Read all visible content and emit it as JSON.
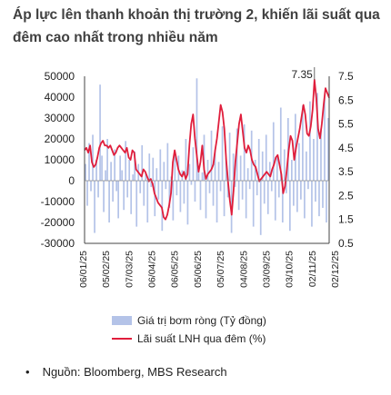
{
  "title": "Áp lực lên thanh khoản thị trường 2, khiến lãi suất qua đêm cao nhất trong nhiều năm",
  "source": {
    "bullet": "•",
    "text": "Nguồn: Bloomberg, MBS Research"
  },
  "chart_data": {
    "type": "bar+line",
    "title": "Áp lực lên thanh khoản thị trường 2, khiến lãi suất qua đêm cao nhất trong nhiều năm",
    "y_left_ticks": [
      "50000",
      "40000",
      "30000",
      "20000",
      "10000",
      "0",
      "-10000",
      "-20000",
      "-30000"
    ],
    "y_left_range": [
      -30000,
      50000
    ],
    "y_right_ticks": [
      "7.5",
      "6.5",
      "5.5",
      "4.5",
      "3.5",
      "2.5",
      "1.5",
      "0.5"
    ],
    "y_right_range": [
      0.5,
      7.5
    ],
    "x_ticks": [
      "06/01/25",
      "05/02/25",
      "07/03/25",
      "06/04/25",
      "06/05/25",
      "05/06/25",
      "05/07/25",
      "04/08/25",
      "03/09/25",
      "03/10/25",
      "02/11/25",
      "02/12/25"
    ],
    "annotation": "7.35",
    "series": [
      {
        "name": "Giá trị bơm ròng (Tỷ đồng)",
        "type": "bar",
        "color": "#b4c3e8",
        "values": [
          8000,
          -12000,
          18000,
          -5000,
          22000,
          -25000,
          10000,
          -8000,
          46000,
          12000,
          -15000,
          5000,
          20000,
          -20000,
          9000,
          -10000,
          15000,
          -5000,
          -18000,
          12000,
          5000,
          -14000,
          19000,
          -8000,
          10000,
          -16000,
          3000,
          14000,
          -22000,
          8000,
          -6000,
          17000,
          -12000,
          4000,
          -20000,
          13000,
          -3000,
          11000,
          -17000,
          6000,
          -9000,
          15000,
          -24000,
          9000,
          -4000,
          18000,
          -13000,
          2000,
          -19000,
          14000,
          -7000,
          12000,
          -15000,
          5000,
          -11000,
          20000,
          -21000,
          8000,
          -2000,
          16000,
          -10000,
          49000,
          7000,
          -14000,
          4000,
          22000,
          -18000,
          10000,
          -6000,
          24000,
          -12000,
          15000,
          -20000,
          9000,
          -5000,
          26000,
          -17000,
          11000,
          -8000,
          23000,
          -25000,
          13000,
          -3000,
          25000,
          -14000,
          12000,
          -9000,
          27000,
          -18000,
          6000,
          -4000,
          24000,
          -22000,
          10000,
          -7000,
          20000,
          -26000,
          14000,
          -11000,
          22000,
          -16000,
          9000,
          -5000,
          28000,
          -19000,
          12000,
          -8000,
          35000,
          -20000,
          15000,
          -6000,
          30000,
          -24000,
          10000,
          -12000,
          32000,
          -15000,
          18000,
          -9000,
          36000,
          -18000,
          14000,
          -4000,
          38000,
          -22000,
          20000,
          -10000,
          42000,
          -17000,
          25000,
          -13000,
          40000,
          -20000,
          30000
        ]
      },
      {
        "name": "Lãi suất LNH qua đêm (%)",
        "type": "line",
        "color": "#e01e3c",
        "values": [
          4.4,
          4.5,
          4.3,
          4.6,
          3.9,
          3.7,
          3.8,
          4.1,
          4.5,
          4.7,
          4.8,
          4.6,
          4.6,
          4.5,
          4.6,
          4.4,
          4.2,
          4.3,
          4.5,
          4.6,
          4.5,
          4.4,
          4.3,
          4.5,
          4.1,
          4.0,
          4.4,
          4.3,
          3.6,
          3.5,
          3.4,
          3.3,
          3.6,
          3.5,
          3.3,
          3.1,
          3.2,
          3.0,
          2.6,
          2.4,
          2.2,
          2.1,
          2.0,
          1.6,
          1.5,
          1.7,
          2.1,
          2.6,
          3.9,
          4.4,
          4.0,
          3.6,
          3.4,
          3.3,
          3.5,
          3.2,
          3.4,
          4.6,
          5.5,
          5.9,
          4.9,
          4.2,
          3.5,
          3.9,
          4.6,
          3.6,
          3.2,
          3.4,
          3.5,
          3.6,
          3.8,
          4.4,
          4.9,
          5.6,
          6.3,
          6.0,
          5.3,
          4.0,
          3.1,
          2.3,
          1.7,
          2.7,
          3.9,
          4.7,
          5.5,
          5.9,
          5.2,
          4.5,
          4.3,
          4.6,
          4.4,
          4.0,
          3.8,
          3.7,
          3.4,
          3.1,
          3.2,
          3.3,
          3.4,
          3.5,
          3.4,
          3.3,
          3.6,
          3.8,
          4.1,
          4.2,
          3.8,
          3.4,
          2.6,
          2.9,
          3.6,
          4.4,
          5.0,
          4.8,
          4.0,
          4.5,
          4.9,
          5.3,
          5.8,
          6.3,
          5.9,
          5.1,
          5.0,
          5.4,
          6.1,
          7.35,
          6.6,
          5.3,
          4.9,
          5.5,
          6.3,
          7.0,
          6.8,
          6.6
        ]
      }
    ]
  }
}
